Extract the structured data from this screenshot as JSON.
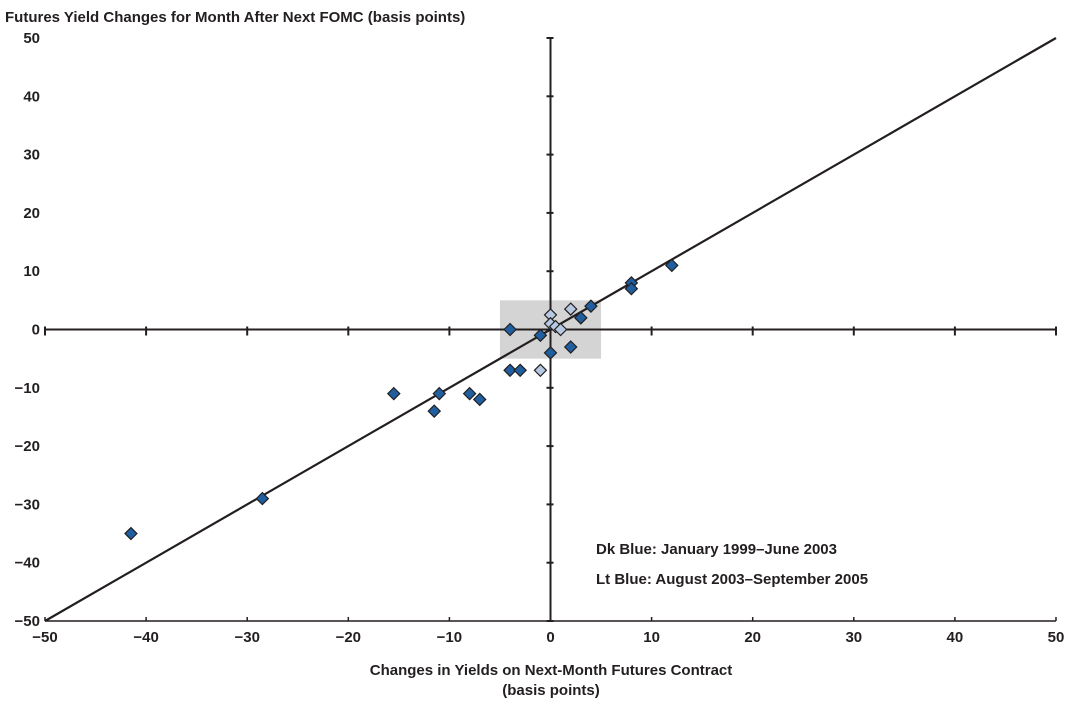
{
  "chart_data": {
    "type": "scatter",
    "title": "Futures Yield Changes for Month After Next FOMC (basis points)",
    "xlabel": [
      "Changes in Yields on Next-Month Futures Contract",
      "(basis points)"
    ],
    "ylabel": "",
    "xlim": [
      -50,
      50
    ],
    "ylim": [
      -50,
      50
    ],
    "x_ticks": [
      -50,
      -40,
      -30,
      -20,
      -10,
      0,
      10,
      20,
      30,
      40,
      50
    ],
    "y_ticks": [
      -50,
      -40,
      -30,
      -20,
      -10,
      0,
      10,
      20,
      30,
      40,
      50
    ],
    "x_tick_labels": [
      "−50",
      "−40",
      "−30",
      "−20",
      "−10",
      "0",
      "10",
      "20",
      "30",
      "40",
      "50"
    ],
    "y_tick_labels": [
      "−50",
      "−40",
      "−30",
      "−20",
      "−10",
      "0",
      "10",
      "20",
      "30",
      "40",
      "50"
    ],
    "grid": false,
    "reference_line": {
      "from": [
        -50,
        -50
      ],
      "to": [
        50,
        50
      ]
    },
    "highlight_box": {
      "x": [
        -5,
        5
      ],
      "y": [
        -5,
        5
      ],
      "color": "#d4d4d4"
    },
    "series": [
      {
        "color": "#1f5fa0",
        "marker": "diamond",
        "points": [
          [
            -41.5,
            -35
          ],
          [
            -28.5,
            -29
          ],
          [
            -15.5,
            -11
          ],
          [
            -11.5,
            -14
          ],
          [
            -11,
            -11
          ],
          [
            -8,
            -11
          ],
          [
            -7,
            -12
          ],
          [
            -4,
            0
          ],
          [
            -4,
            -7
          ],
          [
            -3,
            -7
          ],
          [
            -1,
            -1
          ],
          [
            0,
            -4
          ],
          [
            3,
            2
          ],
          [
            2,
            -3
          ],
          [
            4,
            4
          ],
          [
            8,
            8
          ],
          [
            8,
            7
          ],
          [
            12,
            11
          ]
        ]
      },
      {
        "color": "#b7c9e2",
        "marker": "diamond",
        "points": [
          [
            -1,
            -7
          ],
          [
            0,
            2.5
          ],
          [
            0,
            1
          ],
          [
            0.5,
            0.5
          ],
          [
            1,
            0
          ],
          [
            2,
            3.5
          ]
        ]
      }
    ],
    "annotations": [
      "Dk Blue: January 1999–June 2003",
      "Lt Blue: August 2003–September 2005"
    ]
  }
}
